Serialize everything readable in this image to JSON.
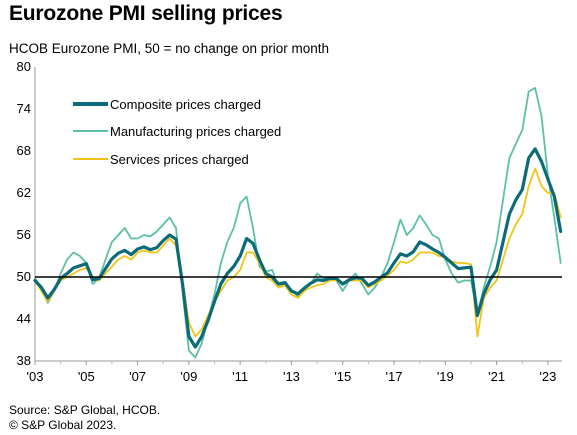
{
  "title": "Eurozone PMI selling prices",
  "subtitle": "HCOB Eurozone PMI, 50 = no change on prior month",
  "footer": {
    "source": "Source: S&P Global, HCOB.",
    "copyright": "© S&P Global 2023."
  },
  "colors": {
    "composite": "#0b6b78",
    "manufacturing": "#5cc0a8",
    "services": "#f2c418",
    "baseline": "#000000"
  },
  "chart_data": {
    "type": "line",
    "title": "Eurozone PMI selling prices",
    "xlabel": "",
    "ylabel": "",
    "ylim": [
      38,
      80
    ],
    "xlim": [
      2003.0,
      2023.55
    ],
    "yticks": [
      38,
      44,
      50,
      56,
      62,
      68,
      74,
      80
    ],
    "xticks": [
      {
        "value": 2003,
        "label": "'03"
      },
      {
        "value": 2005,
        "label": "'05"
      },
      {
        "value": 2007,
        "label": "'07"
      },
      {
        "value": 2009,
        "label": "'09"
      },
      {
        "value": 2011,
        "label": "'11"
      },
      {
        "value": 2013,
        "label": "'13"
      },
      {
        "value": 2015,
        "label": "'15"
      },
      {
        "value": 2017,
        "label": "'17"
      },
      {
        "value": 2019,
        "label": "'19"
      },
      {
        "value": 2021,
        "label": "'21"
      },
      {
        "value": 2023,
        "label": "'23"
      }
    ],
    "reference_line": 50,
    "legend_position": "top-left",
    "series": [
      {
        "name": "Composite prices charged",
        "key": "composite",
        "x": [
          2003.0,
          2003.25,
          2003.5,
          2003.75,
          2004.0,
          2004.25,
          2004.5,
          2004.75,
          2005.0,
          2005.25,
          2005.5,
          2005.75,
          2006.0,
          2006.25,
          2006.5,
          2006.75,
          2007.0,
          2007.25,
          2007.5,
          2007.75,
          2008.0,
          2008.25,
          2008.5,
          2008.75,
          2009.0,
          2009.25,
          2009.5,
          2009.75,
          2010.0,
          2010.25,
          2010.5,
          2010.75,
          2011.0,
          2011.25,
          2011.5,
          2011.75,
          2012.0,
          2012.25,
          2012.5,
          2012.75,
          2013.0,
          2013.25,
          2013.5,
          2013.75,
          2014.0,
          2014.25,
          2014.5,
          2014.75,
          2015.0,
          2015.25,
          2015.5,
          2015.75,
          2016.0,
          2016.25,
          2016.5,
          2016.75,
          2017.0,
          2017.25,
          2017.5,
          2017.75,
          2018.0,
          2018.25,
          2018.5,
          2018.75,
          2019.0,
          2019.25,
          2019.5,
          2019.75,
          2020.0,
          2020.25,
          2020.5,
          2020.75,
          2021.0,
          2021.25,
          2021.5,
          2021.75,
          2022.0,
          2022.25,
          2022.5,
          2022.75,
          2023.0,
          2023.25,
          2023.5
        ],
        "values": [
          49.5,
          48.5,
          47.0,
          48.2,
          49.8,
          50.5,
          51.3,
          51.6,
          51.9,
          49.6,
          49.8,
          51.2,
          52.6,
          53.4,
          53.8,
          53.2,
          54.0,
          54.3,
          53.9,
          54.2,
          55.2,
          56.0,
          55.4,
          49.0,
          41.5,
          40.0,
          41.5,
          43.8,
          46.5,
          49.0,
          50.5,
          51.5,
          53.0,
          55.5,
          54.8,
          52.5,
          50.5,
          50.0,
          49.0,
          49.2,
          48.0,
          47.6,
          48.4,
          49.1,
          49.6,
          49.5,
          49.8,
          49.8,
          49.0,
          49.6,
          49.9,
          49.8,
          48.8,
          49.3,
          50.0,
          50.6,
          52.0,
          53.3,
          53.0,
          53.6,
          55.0,
          54.6,
          54.0,
          53.5,
          52.8,
          52.0,
          51.2,
          51.3,
          51.4,
          44.5,
          47.6,
          49.6,
          51.0,
          55.0,
          59.0,
          61.0,
          62.5,
          67.0,
          68.3,
          66.5,
          64.0,
          61.5,
          56.5
        ]
      },
      {
        "name": "Manufacturing prices charged",
        "key": "manufacturing",
        "x": [
          2003.0,
          2003.25,
          2003.5,
          2003.75,
          2004.0,
          2004.25,
          2004.5,
          2004.75,
          2005.0,
          2005.25,
          2005.5,
          2005.75,
          2006.0,
          2006.25,
          2006.5,
          2006.75,
          2007.0,
          2007.25,
          2007.5,
          2007.75,
          2008.0,
          2008.25,
          2008.5,
          2008.75,
          2009.0,
          2009.25,
          2009.5,
          2009.75,
          2010.0,
          2010.25,
          2010.5,
          2010.75,
          2011.0,
          2011.25,
          2011.5,
          2011.75,
          2012.0,
          2012.25,
          2012.5,
          2012.75,
          2013.0,
          2013.25,
          2013.5,
          2013.75,
          2014.0,
          2014.25,
          2014.5,
          2014.75,
          2015.0,
          2015.25,
          2015.5,
          2015.75,
          2016.0,
          2016.25,
          2016.5,
          2016.75,
          2017.0,
          2017.25,
          2017.5,
          2017.75,
          2018.0,
          2018.25,
          2018.5,
          2018.75,
          2019.0,
          2019.25,
          2019.5,
          2019.75,
          2020.0,
          2020.25,
          2020.5,
          2020.75,
          2021.0,
          2021.25,
          2021.5,
          2021.75,
          2022.0,
          2022.25,
          2022.5,
          2022.75,
          2023.0,
          2023.25,
          2023.5
        ],
        "values": [
          49.8,
          48.2,
          46.3,
          48.0,
          50.5,
          52.5,
          53.5,
          53.0,
          52.0,
          49.0,
          49.8,
          52.5,
          55.0,
          56.0,
          57.0,
          55.5,
          55.5,
          56.0,
          55.8,
          56.5,
          57.5,
          58.5,
          57.0,
          48.0,
          39.5,
          38.5,
          40.5,
          44.0,
          47.5,
          52.0,
          55.0,
          57.0,
          60.5,
          61.5,
          57.0,
          51.5,
          50.8,
          51.0,
          48.5,
          49.0,
          48.2,
          47.2,
          48.5,
          49.0,
          50.5,
          49.8,
          50.0,
          49.5,
          48.0,
          49.5,
          50.5,
          49.0,
          47.5,
          48.5,
          50.0,
          52.0,
          55.0,
          58.2,
          56.0,
          57.0,
          58.8,
          57.5,
          56.0,
          55.5,
          52.5,
          50.5,
          49.2,
          49.5,
          49.5,
          44.5,
          48.5,
          51.5,
          55.0,
          61.0,
          67.0,
          69.0,
          71.0,
          76.5,
          77.0,
          73.0,
          64.5,
          58.5,
          52.0
        ]
      },
      {
        "name": "Services prices charged",
        "key": "services",
        "x": [
          2003.0,
          2003.25,
          2003.5,
          2003.75,
          2004.0,
          2004.25,
          2004.5,
          2004.75,
          2005.0,
          2005.25,
          2005.5,
          2005.75,
          2006.0,
          2006.25,
          2006.5,
          2006.75,
          2007.0,
          2007.25,
          2007.5,
          2007.75,
          2008.0,
          2008.25,
          2008.5,
          2008.75,
          2009.0,
          2009.25,
          2009.5,
          2009.75,
          2010.0,
          2010.25,
          2010.5,
          2010.75,
          2011.0,
          2011.25,
          2011.5,
          2011.75,
          2012.0,
          2012.25,
          2012.5,
          2012.75,
          2013.0,
          2013.25,
          2013.5,
          2013.75,
          2014.0,
          2014.25,
          2014.5,
          2014.75,
          2015.0,
          2015.25,
          2015.5,
          2015.75,
          2016.0,
          2016.25,
          2016.5,
          2016.75,
          2017.0,
          2017.25,
          2017.5,
          2017.75,
          2018.0,
          2018.25,
          2018.5,
          2018.75,
          2019.0,
          2019.25,
          2019.5,
          2019.75,
          2020.0,
          2020.25,
          2020.5,
          2020.75,
          2021.0,
          2021.25,
          2021.5,
          2021.75,
          2022.0,
          2022.25,
          2022.5,
          2022.75,
          2023.0,
          2023.25,
          2023.5
        ],
        "values": [
          49.5,
          48.0,
          46.5,
          48.0,
          49.5,
          50.0,
          50.5,
          51.0,
          51.3,
          49.8,
          49.5,
          50.5,
          51.5,
          52.5,
          53.0,
          52.5,
          53.5,
          53.8,
          53.5,
          53.5,
          54.5,
          55.5,
          54.5,
          49.5,
          43.5,
          41.5,
          42.5,
          44.5,
          46.5,
          48.0,
          49.5,
          50.0,
          51.0,
          53.5,
          53.5,
          52.0,
          50.0,
          49.5,
          48.5,
          48.8,
          47.5,
          47.0,
          48.0,
          48.5,
          48.8,
          49.0,
          49.5,
          49.5,
          49.0,
          49.5,
          49.5,
          49.5,
          48.5,
          49.0,
          49.5,
          50.2,
          51.0,
          52.2,
          52.0,
          52.5,
          53.5,
          53.5,
          53.5,
          53.0,
          52.8,
          52.2,
          52.0,
          52.0,
          51.8,
          41.5,
          47.0,
          48.5,
          49.5,
          52.5,
          55.5,
          57.5,
          59.0,
          63.0,
          65.5,
          63.0,
          62.0,
          62.0,
          58.5
        ]
      }
    ]
  }
}
